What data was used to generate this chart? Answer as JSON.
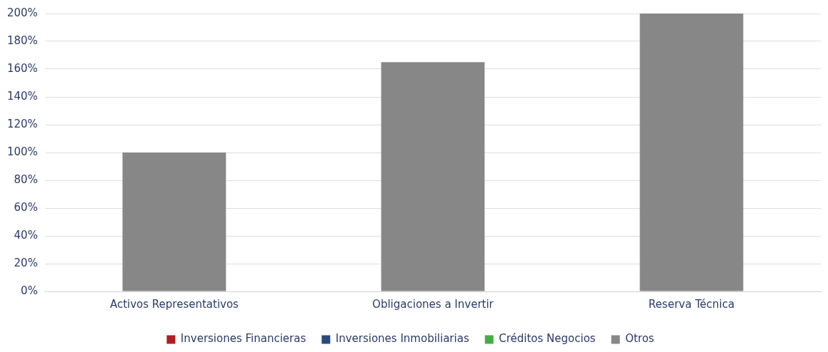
{
  "chart_data": {
    "type": "bar",
    "stacked": true,
    "categories": [
      "Activos Representativos",
      "Obligaciones a Invertir",
      "Reserva Técnica"
    ],
    "series": [
      {
        "name": "Inversiones Financieras",
        "color": "#b01c24",
        "values": [
          0,
          0,
          0
        ]
      },
      {
        "name": "Inversiones Inmobiliarias",
        "color": "#2a4a7f",
        "values": [
          0,
          0,
          0
        ]
      },
      {
        "name": "Créditos Negocios",
        "color": "#45ad45",
        "values": [
          0,
          0,
          0
        ]
      },
      {
        "name": "Otros",
        "color": "#878788",
        "values": [
          100,
          165,
          200
        ]
      }
    ],
    "ylim": [
      0,
      200
    ],
    "yticks": [
      {
        "value": 0,
        "label": "0%"
      },
      {
        "value": 20,
        "label": "20%"
      },
      {
        "value": 40,
        "label": "40%"
      },
      {
        "value": 60,
        "label": "60%"
      },
      {
        "value": 80,
        "label": "80%"
      },
      {
        "value": 100,
        "label": "100%"
      },
      {
        "value": 120,
        "label": "120%"
      },
      {
        "value": 140,
        "label": "140%"
      },
      {
        "value": 160,
        "label": "160%"
      },
      {
        "value": 180,
        "label": "180%"
      },
      {
        "value": 200,
        "label": "200%"
      }
    ],
    "grid": "y",
    "legend": "bottom"
  }
}
